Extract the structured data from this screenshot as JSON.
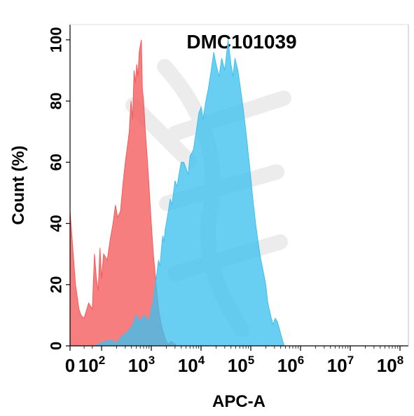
{
  "chart_data": {
    "type": "area",
    "title": "DMC101039",
    "xlabel": "APC-A",
    "ylabel": "Count  (%)",
    "x_scale": "biexponential",
    "xlim": [
      0,
      100000000
    ],
    "ylim": [
      0,
      105
    ],
    "y_ticks": [
      "0",
      "20",
      "40",
      "60",
      "80",
      "100"
    ],
    "y_tick_values": [
      0,
      20,
      40,
      60,
      80,
      100
    ],
    "x_ticks": [
      {
        "value": 0,
        "base": "0",
        "exp": ""
      },
      {
        "value": 100,
        "base": "10",
        "exp": "2"
      },
      {
        "value": 1000,
        "base": "10",
        "exp": "3"
      },
      {
        "value": 10000,
        "base": "10",
        "exp": "4"
      },
      {
        "value": 100000,
        "base": "10",
        "exp": "5"
      },
      {
        "value": 1000000,
        "base": "10",
        "exp": "6"
      },
      {
        "value": 10000000,
        "base": "10",
        "exp": "7"
      },
      {
        "value": 100000000,
        "base": "10",
        "exp": "8"
      }
    ],
    "series": [
      {
        "color": "#f35a5a",
        "points": [
          [
            0,
            44
          ],
          [
            3,
            20
          ],
          [
            8,
            12
          ],
          [
            12,
            10
          ],
          [
            20,
            9
          ],
          [
            35,
            14
          ],
          [
            50,
            12
          ],
          [
            60,
            30
          ],
          [
            70,
            22
          ],
          [
            80,
            18
          ],
          [
            90,
            32
          ],
          [
            100,
            22
          ],
          [
            110,
            30
          ],
          [
            130,
            28
          ],
          [
            150,
            35
          ],
          [
            170,
            40
          ],
          [
            190,
            46
          ],
          [
            210,
            42
          ],
          [
            240,
            44
          ],
          [
            270,
            53
          ],
          [
            300,
            60
          ],
          [
            330,
            65
          ],
          [
            360,
            70
          ],
          [
            390,
            80
          ],
          [
            420,
            74
          ],
          [
            450,
            90
          ],
          [
            480,
            86
          ],
          [
            510,
            92
          ],
          [
            540,
            88
          ],
          [
            570,
            96
          ],
          [
            600,
            98
          ],
          [
            630,
            100
          ],
          [
            660,
            84
          ],
          [
            700,
            80
          ],
          [
            760,
            70
          ],
          [
            840,
            60
          ],
          [
            900,
            52
          ],
          [
            980,
            42
          ],
          [
            1100,
            30
          ],
          [
            1250,
            20
          ],
          [
            1400,
            12
          ],
          [
            1550,
            8
          ],
          [
            1700,
            5
          ],
          [
            1850,
            3
          ],
          [
            2000,
            1.5
          ],
          [
            2200,
            0.5
          ],
          [
            2500,
            1.5
          ],
          [
            3000,
            0.5
          ],
          [
            3300,
            0
          ]
        ]
      },
      {
        "color": "#3ec0ee",
        "points": [
          [
            60,
            0
          ],
          [
            100,
            1
          ],
          [
            150,
            2
          ],
          [
            200,
            1
          ],
          [
            250,
            3
          ],
          [
            300,
            4
          ],
          [
            400,
            6
          ],
          [
            500,
            10
          ],
          [
            600,
            8
          ],
          [
            700,
            10
          ],
          [
            800,
            9
          ],
          [
            900,
            8
          ],
          [
            1000,
            12
          ],
          [
            1100,
            15
          ],
          [
            1200,
            20
          ],
          [
            1300,
            24
          ],
          [
            1400,
            28
          ],
          [
            1500,
            26
          ],
          [
            1600,
            32
          ],
          [
            1700,
            36
          ],
          [
            1800,
            34
          ],
          [
            1900,
            38
          ],
          [
            2000,
            40
          ],
          [
            2200,
            44
          ],
          [
            2400,
            48
          ],
          [
            2600,
            46
          ],
          [
            2800,
            50
          ],
          [
            3000,
            54
          ],
          [
            3300,
            52
          ],
          [
            3600,
            56
          ],
          [
            4000,
            60
          ],
          [
            4500,
            60
          ],
          [
            5000,
            58
          ],
          [
            5500,
            56
          ],
          [
            6000,
            62
          ],
          [
            7000,
            64
          ],
          [
            8000,
            70
          ],
          [
            9000,
            76
          ],
          [
            10000,
            78
          ],
          [
            11000,
            74
          ],
          [
            12500,
            80
          ],
          [
            14000,
            84
          ],
          [
            16000,
            90
          ],
          [
            18000,
            96
          ],
          [
            20000,
            92
          ],
          [
            23000,
            88
          ],
          [
            26000,
            94
          ],
          [
            30000,
            90
          ],
          [
            35000,
            100
          ],
          [
            40000,
            92
          ],
          [
            44000,
            88
          ],
          [
            48000,
            94
          ],
          [
            55000,
            90
          ],
          [
            62000,
            84
          ],
          [
            70000,
            78
          ],
          [
            80000,
            70
          ],
          [
            90000,
            62
          ],
          [
            100000,
            55
          ],
          [
            110000,
            48
          ],
          [
            125000,
            40
          ],
          [
            140000,
            34
          ],
          [
            160000,
            28
          ],
          [
            180000,
            24
          ],
          [
            200000,
            20
          ],
          [
            220000,
            14
          ],
          [
            250000,
            10
          ],
          [
            280000,
            7
          ],
          [
            310000,
            9
          ],
          [
            340000,
            8
          ],
          [
            370000,
            6
          ],
          [
            400000,
            4
          ],
          [
            430000,
            2
          ],
          [
            470000,
            0
          ]
        ]
      }
    ],
    "grid": false,
    "legend": "none"
  }
}
